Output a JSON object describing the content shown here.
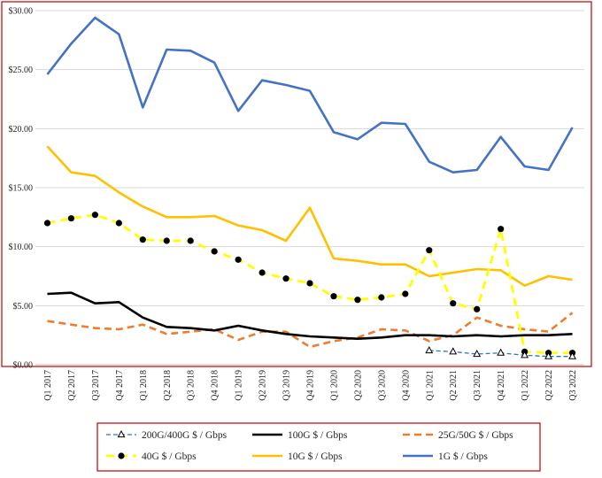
{
  "chart_data": {
    "type": "line",
    "title": "",
    "xlabel": "",
    "ylabel": "",
    "ylim": [
      0,
      30
    ],
    "y_ticks": [
      "$0.00",
      "$5.00",
      "$10.00",
      "$15.00",
      "$20.00",
      "$25.00",
      "$30.00"
    ],
    "grid": "horizontal",
    "legend_position": "bottom",
    "categories": [
      "Q1 2017",
      "Q2 2017",
      "Q3 2017",
      "Q4 2017",
      "Q1 2018",
      "Q2 2018",
      "Q3 2018",
      "Q4 2018",
      "Q1 2019",
      "Q2 2019",
      "Q3 2019",
      "Q4 2019",
      "Q1 2020",
      "Q2 2020",
      "Q3 2020",
      "Q4 2020",
      "Q1 2021",
      "Q2 2021",
      "Q3 2021",
      "Q4 2021",
      "Q1 2022",
      "Q2 2022",
      "Q3 2022"
    ],
    "series": [
      {
        "name": "200G/400G $ / Gbps",
        "color": "#2e75b6",
        "style": "dashdot-triangle",
        "values": [
          null,
          null,
          null,
          null,
          null,
          null,
          null,
          null,
          null,
          null,
          null,
          null,
          null,
          null,
          null,
          null,
          1.2,
          1.1,
          0.9,
          1.0,
          0.8,
          0.7,
          0.7
        ]
      },
      {
        "name": "100G $ / Gbps",
        "color": "#000000",
        "style": "solid",
        "values": [
          6.0,
          6.1,
          5.2,
          5.3,
          4.0,
          3.2,
          3.1,
          2.9,
          3.3,
          2.9,
          2.6,
          2.4,
          2.3,
          2.2,
          2.3,
          2.5,
          2.5,
          2.4,
          2.5,
          2.4,
          2.5,
          2.5,
          2.6
        ]
      },
      {
        "name": "25G/50G $ / Gbps",
        "color": "#ed7d31",
        "style": "dashed",
        "values": [
          3.7,
          3.4,
          3.1,
          3.0,
          3.4,
          2.6,
          2.8,
          3.0,
          2.1,
          2.8,
          2.8,
          1.5,
          2.0,
          2.3,
          3.0,
          2.9,
          2.0,
          2.5,
          4.0,
          3.3,
          3.0,
          2.8,
          4.4
        ]
      },
      {
        "name": "40G $ / Gbps",
        "color": "#ffff00",
        "style": "dashed-dot",
        "values": [
          12.0,
          12.4,
          12.7,
          12.0,
          10.6,
          10.5,
          10.5,
          9.6,
          8.9,
          7.8,
          7.3,
          6.9,
          5.8,
          5.5,
          5.7,
          6.0,
          9.7,
          5.2,
          4.7,
          11.5,
          1.1,
          1.0,
          1.0
        ]
      },
      {
        "name": "10G $ / Gbps",
        "color": "#ffc000",
        "style": "solid",
        "values": [
          18.5,
          16.3,
          16.0,
          14.6,
          13.4,
          12.5,
          12.5,
          12.6,
          11.8,
          11.4,
          10.5,
          13.3,
          9.0,
          8.8,
          8.5,
          8.5,
          7.5,
          7.8,
          8.1,
          8.0,
          6.7,
          7.5,
          7.2
        ]
      },
      {
        "name": "1G $ / Gbps",
        "color": "#4472c4",
        "style": "solid",
        "values": [
          24.6,
          27.2,
          29.4,
          28.0,
          21.8,
          26.7,
          26.6,
          25.6,
          21.5,
          24.1,
          23.7,
          23.2,
          19.7,
          19.1,
          20.5,
          20.4,
          17.2,
          16.3,
          16.5,
          19.3,
          16.8,
          16.5,
          20.1
        ]
      }
    ]
  }
}
